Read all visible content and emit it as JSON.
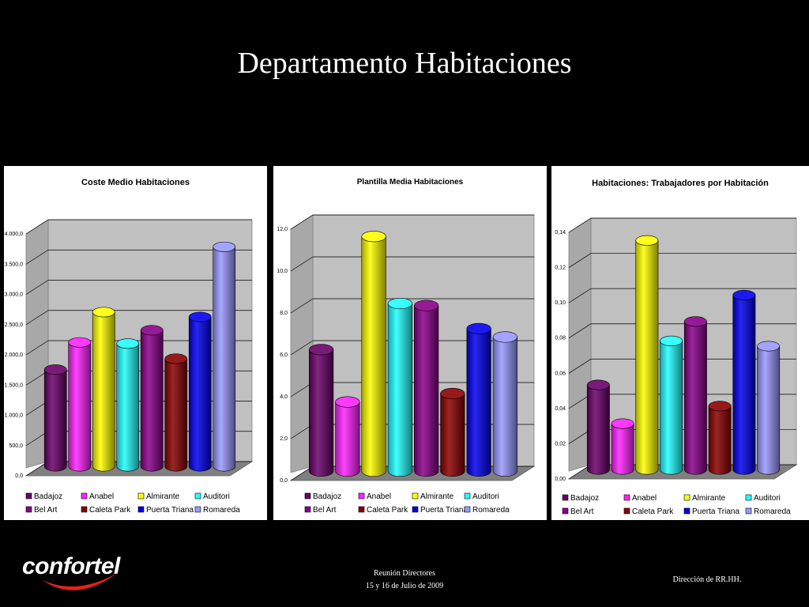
{
  "slide": {
    "title": "Departamento Habitaciones",
    "footer_line1": "Reunión Directores",
    "footer_line2": "15 y 16 de Julio de 2009",
    "footer_right": "Dirección de RR.HH.",
    "logo_text": "confortel"
  },
  "chart_data": [
    {
      "type": "bar",
      "title": "Coste Medio Habitaciones",
      "categories": [
        "Badajoz",
        "Anabel",
        "Almirante",
        "Auditori",
        "Bel Art",
        "Caleta Park",
        "Puerta Triana",
        "Romareda"
      ],
      "values": [
        1600,
        2050,
        2550,
        2030,
        2250,
        1780,
        2470,
        3630
      ],
      "ylim": [
        0,
        4000
      ],
      "yticks": [
        "0,0",
        "500,0",
        "1.000,0",
        "1.500,0",
        "2.000,0",
        "2.500,0",
        "3.000,0",
        "3.500,0",
        "4.000,0"
      ],
      "grid": true,
      "legend": "bottom"
    },
    {
      "type": "bar",
      "title": "Plantilla Media Habitaciones",
      "categories": [
        "Badajoz",
        "Anabel",
        "Almirante",
        "Auditori",
        "Bel Art",
        "Caleta Park",
        "Puerta Triana",
        "Romareda"
      ],
      "values": [
        5.8,
        3.3,
        11.2,
        8.0,
        7.9,
        3.7,
        6.8,
        6.4
      ],
      "ylim": [
        0,
        12
      ],
      "yticks": [
        "0,0",
        "2,0",
        "4,0",
        "6,0",
        "8,0",
        "10,0",
        "12,0"
      ],
      "grid": true,
      "legend": "bottom"
    },
    {
      "type": "bar",
      "title": "Habitaciones: Trabajadores por Habitación",
      "categories": [
        "Badajoz",
        "Anabel",
        "Almirante",
        "Auditori",
        "Bel Art",
        "Caleta Park",
        "Puerta Triana",
        "Romareda"
      ],
      "values": [
        0.048,
        0.026,
        0.13,
        0.073,
        0.084,
        0.036,
        0.099,
        0.07
      ],
      "ylim": [
        0,
        0.14
      ],
      "yticks": [
        "0,00",
        "0,02",
        "0,04",
        "0,06",
        "0,08",
        "0,10",
        "0,12",
        "0,14"
      ],
      "grid": true,
      "legend": "bottom"
    }
  ],
  "series_colors": [
    "#6a006a",
    "#ff22ff",
    "#ffff00",
    "#22ffff",
    "#8a008a",
    "#8a0000",
    "#0000ee",
    "#9999ff"
  ]
}
